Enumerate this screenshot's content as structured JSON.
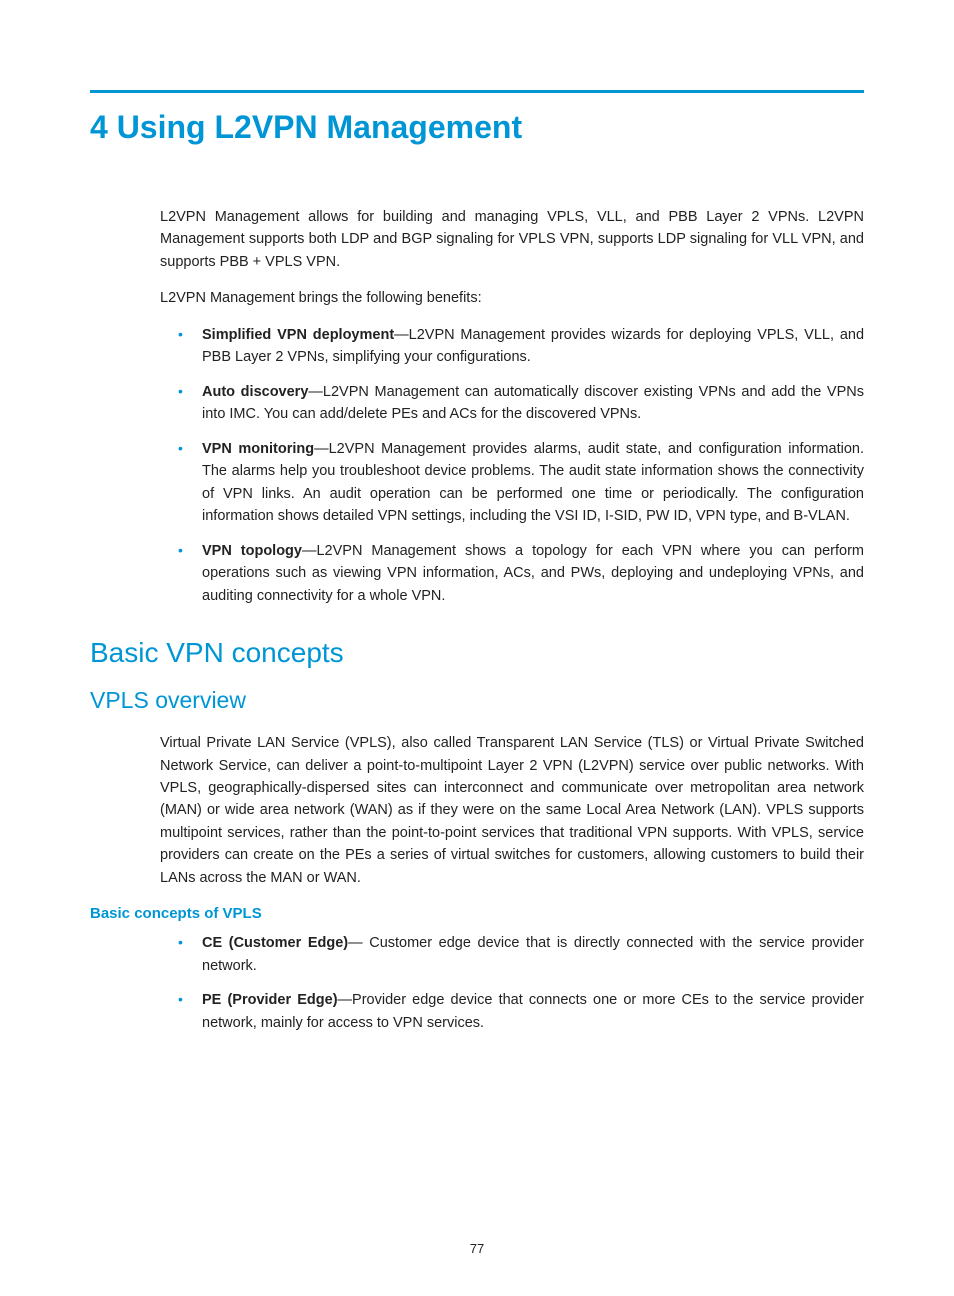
{
  "colors": {
    "accent": "#0096d6",
    "text": "#222222",
    "background": "#ffffff"
  },
  "chapter": {
    "title": "4 Using L2VPN Management"
  },
  "intro": {
    "p1": "L2VPN Management allows for building and managing VPLS, VLL, and PBB Layer 2 VPNs. L2VPN Management supports both LDP and BGP signaling for VPLS VPN, supports LDP signaling for VLL VPN, and supports PBB + VPLS VPN.",
    "p2": "L2VPN Management brings the following benefits:"
  },
  "benefits": [
    {
      "term": "Simplified VPN deployment",
      "desc": "—L2VPN Management provides wizards for deploying VPLS, VLL, and PBB Layer 2 VPNs, simplifying your configurations."
    },
    {
      "term": "Auto discovery",
      "desc": "—L2VPN Management can automatically discover existing VPNs and add the VPNs into IMC. You can add/delete PEs and ACs for the discovered VPNs."
    },
    {
      "term": "VPN monitoring",
      "desc": "—L2VPN Management provides alarms, audit state, and configuration information. The alarms help you troubleshoot device problems. The audit state information shows the connectivity of VPN links. An audit operation can be performed one time or periodically. The configuration information shows detailed VPN settings, including the VSI ID, I-SID, PW ID, VPN type, and B-VLAN."
    },
    {
      "term": "VPN topology",
      "desc": "—L2VPN Management shows a topology for each VPN where you can perform operations such as viewing VPN information, ACs, and PWs, deploying and undeploying VPNs, and auditing connectivity for a whole VPN."
    }
  ],
  "section2": {
    "title": "Basic VPN concepts"
  },
  "section2_1": {
    "title": "VPLS overview",
    "p1": "Virtual Private LAN Service (VPLS), also called Transparent LAN Service (TLS) or Virtual Private Switched Network Service, can deliver a point-to-multipoint Layer 2 VPN (L2VPN) service over public networks. With VPLS, geographically-dispersed sites can interconnect and communicate over metropolitan area network (MAN) or wide area network (WAN) as if they were on the same Local Area Network (LAN). VPLS supports multipoint services, rather than the point-to-point services that traditional VPN supports. With VPLS, service providers can create on the PEs a series of virtual switches for customers, allowing customers to build their LANs across the MAN or WAN."
  },
  "section2_1_1": {
    "title": "Basic concepts of VPLS",
    "items": [
      {
        "term": "CE (Customer Edge)",
        "desc": "— Customer edge device that is directly connected with the service provider network."
      },
      {
        "term": "PE (Provider Edge)",
        "desc": "—Provider edge device that connects one or more CEs to the service provider network, mainly for access to VPN services."
      }
    ]
  },
  "page_number": "77"
}
